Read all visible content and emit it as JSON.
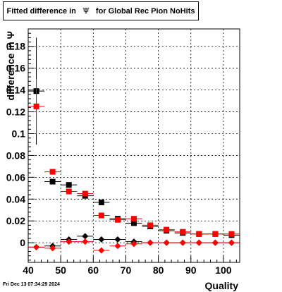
{
  "header": {
    "title_prefix": "Fitted difference in",
    "title_symbol": "Ψ",
    "title_suffix": "for Global Rec Pion NoHits"
  },
  "footer": {
    "date": "Fri Dec 13 07:34:29 2024"
  },
  "chart_data": {
    "type": "scatter",
    "title": "Fitted difference in Ψ for Global Rec Pion NoHits",
    "xlabel": "Quality",
    "ylabel": "difference in Ψ",
    "xlim": [
      40,
      105
    ],
    "ylim": [
      -0.018,
      0.196
    ],
    "xticks": [
      40,
      50,
      60,
      70,
      80,
      90,
      100
    ],
    "yticks": [
      0,
      0.02,
      0.04,
      0.06,
      0.08,
      0.1,
      0.12,
      0.14,
      0.16,
      0.18
    ],
    "ytick_labels": [
      "0",
      "0.02",
      "0.04",
      "0.06",
      "0.08",
      "0.1",
      "0.12",
      "0.14",
      "0.16",
      "0.18"
    ],
    "grid": true,
    "x": [
      42.5,
      47.5,
      52.5,
      57.5,
      62.5,
      67.5,
      72.5,
      77.5,
      82.5,
      87.5,
      92.5,
      97.5,
      102.5
    ],
    "series": [
      {
        "marker": "square",
        "color": "#000000",
        "values": [
          0.139,
          0.056,
          0.053,
          0.043,
          0.037,
          0.022,
          0.018,
          0.015,
          0.011,
          0.009,
          0.008,
          0.008,
          0.007
        ],
        "errors": [
          0.049,
          0.002,
          0.002,
          0.001,
          0.001,
          0.001,
          0.001,
          0.001,
          0.001,
          0.001,
          0.001,
          0.001,
          0.001
        ]
      },
      {
        "marker": "square",
        "color": "#ff0000",
        "values": [
          0.125,
          0.065,
          0.047,
          0.045,
          0.025,
          0.021,
          0.022,
          0.016,
          0.012,
          0.01,
          0.008,
          0.008,
          0.008
        ],
        "errors": [
          0.025,
          0.002,
          0.002,
          0.001,
          0.001,
          0.001,
          0.001,
          0.001,
          0.001,
          0.001,
          0.001,
          0.001,
          0.001
        ]
      },
      {
        "marker": "diamond",
        "color": "#000000",
        "values": [
          -0.004,
          -0.003,
          0.003,
          0.006,
          0.003,
          0.003,
          0.001,
          0.0,
          0.0,
          0.0,
          0.0,
          0.0,
          0.0
        ],
        "errors": [
          0.001,
          0.001,
          0.001,
          0.001,
          0.001,
          0.001,
          0.001,
          0.001,
          0.001,
          0.001,
          0.001,
          0.001,
          0.001
        ]
      },
      {
        "marker": "diamond",
        "color": "#ff0000",
        "values": [
          -0.004,
          -0.005,
          0.001,
          0.001,
          -0.007,
          -0.003,
          -0.001,
          0.0,
          0.0,
          0.0,
          0.0,
          0.0,
          0.0
        ],
        "errors": [
          0.001,
          0.001,
          0.001,
          0.001,
          0.001,
          0.001,
          0.001,
          0.001,
          0.001,
          0.001,
          0.001,
          0.001,
          0.001
        ]
      }
    ]
  }
}
